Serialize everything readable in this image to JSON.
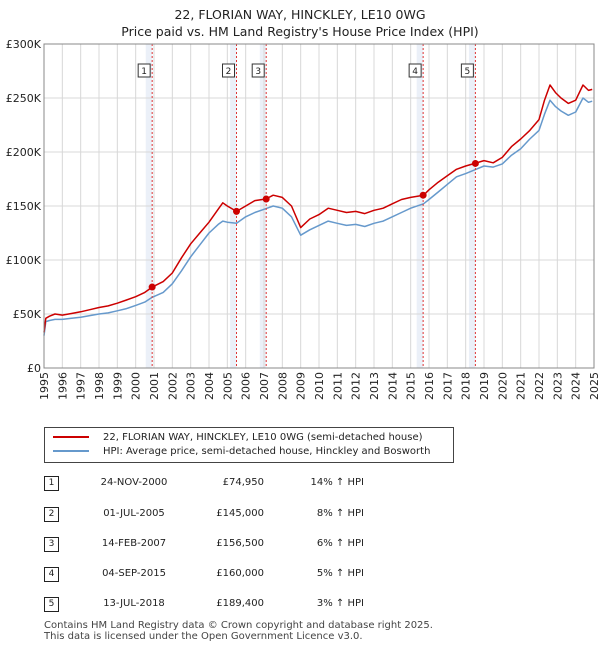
{
  "title_line1": "22, FLORIAN WAY, HINCKLEY, LE10 0WG",
  "title_line2": "Price paid vs. HM Land Registry's House Price Index (HPI)",
  "colors": {
    "price_line": "#cc0000",
    "hpi_line": "#6699cc",
    "shade": "#dde6f3",
    "marker_line": "#dd3333"
  },
  "chart_data": {
    "type": "line",
    "xlim": [
      1995,
      2025
    ],
    "ylim": [
      0,
      300000
    ],
    "y_ticks": [
      {
        "value": 0,
        "label": "£0"
      },
      {
        "value": 50000,
        "label": "£50K"
      },
      {
        "value": 100000,
        "label": "£100K"
      },
      {
        "value": 150000,
        "label": "£150K"
      },
      {
        "value": 200000,
        "label": "£200K"
      },
      {
        "value": 250000,
        "label": "£250K"
      },
      {
        "value": 300000,
        "label": "£300K"
      }
    ],
    "x_ticks": [
      "1995",
      "1996",
      "1997",
      "1998",
      "1999",
      "2000",
      "2001",
      "2002",
      "2003",
      "2004",
      "2005",
      "2006",
      "2007",
      "2008",
      "2009",
      "2010",
      "2011",
      "2012",
      "2013",
      "2014",
      "2015",
      "2016",
      "2017",
      "2018",
      "2019",
      "2020",
      "2021",
      "2022",
      "2023",
      "2024",
      "2025"
    ],
    "series": [
      {
        "name": "22, FLORIAN WAY, HINCKLEY, LE10 0WG (semi-detached house)",
        "points": [
          [
            1995.0,
            33000
          ],
          [
            1995.1,
            46000
          ],
          [
            1995.3,
            48000
          ],
          [
            1995.6,
            50000
          ],
          [
            1996.0,
            49000
          ],
          [
            1996.5,
            50500
          ],
          [
            1997.0,
            52000
          ],
          [
            1997.5,
            54000
          ],
          [
            1998.0,
            56000
          ],
          [
            1998.5,
            57500
          ],
          [
            1999.0,
            60000
          ],
          [
            1999.5,
            63000
          ],
          [
            2000.0,
            66000
          ],
          [
            2000.5,
            70000
          ],
          [
            2000.9,
            74950
          ],
          [
            2001.5,
            80000
          ],
          [
            2002.0,
            88000
          ],
          [
            2002.5,
            102000
          ],
          [
            2003.0,
            115000
          ],
          [
            2003.5,
            125000
          ],
          [
            2004.0,
            135000
          ],
          [
            2004.5,
            147000
          ],
          [
            2004.75,
            153000
          ],
          [
            2005.0,
            150000
          ],
          [
            2005.5,
            145000
          ],
          [
            2006.0,
            150000
          ],
          [
            2006.5,
            155000
          ],
          [
            2007.1,
            156500
          ],
          [
            2007.5,
            160000
          ],
          [
            2008.0,
            158000
          ],
          [
            2008.5,
            150000
          ],
          [
            2009.0,
            130000
          ],
          [
            2009.5,
            138000
          ],
          [
            2010.0,
            142000
          ],
          [
            2010.5,
            148000
          ],
          [
            2011.0,
            146000
          ],
          [
            2011.5,
            144000
          ],
          [
            2012.0,
            145000
          ],
          [
            2012.5,
            143000
          ],
          [
            2013.0,
            146000
          ],
          [
            2013.5,
            148000
          ],
          [
            2014.0,
            152000
          ],
          [
            2014.5,
            156000
          ],
          [
            2015.0,
            158000
          ],
          [
            2015.7,
            160000
          ],
          [
            2016.0,
            165000
          ],
          [
            2016.5,
            172000
          ],
          [
            2017.0,
            178000
          ],
          [
            2017.5,
            184000
          ],
          [
            2018.0,
            187000
          ],
          [
            2018.5,
            189400
          ],
          [
            2019.0,
            192000
          ],
          [
            2019.5,
            190000
          ],
          [
            2020.0,
            195000
          ],
          [
            2020.5,
            205000
          ],
          [
            2021.0,
            212000
          ],
          [
            2021.5,
            220000
          ],
          [
            2022.0,
            230000
          ],
          [
            2022.3,
            248000
          ],
          [
            2022.6,
            262000
          ],
          [
            2022.9,
            255000
          ],
          [
            2023.2,
            250000
          ],
          [
            2023.6,
            245000
          ],
          [
            2024.0,
            248000
          ],
          [
            2024.4,
            262000
          ],
          [
            2024.7,
            257000
          ],
          [
            2024.9,
            258000
          ]
        ]
      },
      {
        "name": "HPI: Average price, semi-detached house, Hinckley and Bosworth",
        "points": [
          [
            1995.0,
            30000
          ],
          [
            1995.1,
            43000
          ],
          [
            1995.3,
            44000
          ],
          [
            1995.6,
            45000
          ],
          [
            1996.0,
            45000
          ],
          [
            1996.5,
            46000
          ],
          [
            1997.0,
            47000
          ],
          [
            1997.5,
            48500
          ],
          [
            1998.0,
            50000
          ],
          [
            1998.5,
            51000
          ],
          [
            1999.0,
            53000
          ],
          [
            1999.5,
            55000
          ],
          [
            2000.0,
            58000
          ],
          [
            2000.5,
            61000
          ],
          [
            2000.9,
            65500
          ],
          [
            2001.5,
            70000
          ],
          [
            2002.0,
            78000
          ],
          [
            2002.5,
            90000
          ],
          [
            2003.0,
            103000
          ],
          [
            2003.5,
            114000
          ],
          [
            2004.0,
            125000
          ],
          [
            2004.5,
            133000
          ],
          [
            2004.75,
            136000
          ],
          [
            2005.0,
            135000
          ],
          [
            2005.5,
            134000
          ],
          [
            2006.0,
            140000
          ],
          [
            2006.5,
            144000
          ],
          [
            2007.1,
            147500
          ],
          [
            2007.5,
            150000
          ],
          [
            2008.0,
            148000
          ],
          [
            2008.5,
            140000
          ],
          [
            2009.0,
            123000
          ],
          [
            2009.5,
            128000
          ],
          [
            2010.0,
            132000
          ],
          [
            2010.5,
            136000
          ],
          [
            2011.0,
            134000
          ],
          [
            2011.5,
            132000
          ],
          [
            2012.0,
            133000
          ],
          [
            2012.5,
            131000
          ],
          [
            2013.0,
            134000
          ],
          [
            2013.5,
            136000
          ],
          [
            2014.0,
            140000
          ],
          [
            2014.5,
            144000
          ],
          [
            2015.0,
            148000
          ],
          [
            2015.7,
            152000
          ],
          [
            2016.0,
            156000
          ],
          [
            2016.5,
            163000
          ],
          [
            2017.0,
            170000
          ],
          [
            2017.5,
            177000
          ],
          [
            2018.0,
            180000
          ],
          [
            2018.5,
            183500
          ],
          [
            2019.0,
            187000
          ],
          [
            2019.5,
            186000
          ],
          [
            2020.0,
            189000
          ],
          [
            2020.5,
            197000
          ],
          [
            2021.0,
            203000
          ],
          [
            2021.5,
            212000
          ],
          [
            2022.0,
            220000
          ],
          [
            2022.3,
            235000
          ],
          [
            2022.6,
            248000
          ],
          [
            2022.9,
            242000
          ],
          [
            2023.2,
            238000
          ],
          [
            2023.6,
            234000
          ],
          [
            2024.0,
            237000
          ],
          [
            2024.4,
            250000
          ],
          [
            2024.7,
            246000
          ],
          [
            2024.9,
            247000
          ]
        ]
      }
    ],
    "sale_markers": [
      {
        "label": "1",
        "x": 2000.9,
        "price": 74950
      },
      {
        "label": "2",
        "x": 2005.5,
        "price": 145000
      },
      {
        "label": "3",
        "x": 2007.12,
        "price": 156500
      },
      {
        "label": "4",
        "x": 2015.68,
        "price": 160000
      },
      {
        "label": "5",
        "x": 2018.53,
        "price": 189400
      }
    ]
  },
  "legend": {
    "series1": "22, FLORIAN WAY, HINCKLEY, LE10 0WG (semi-detached house)",
    "series2": "HPI: Average price, semi-detached house, Hinckley and Bosworth"
  },
  "sales": [
    {
      "num": "1",
      "date": "24-NOV-2000",
      "price": "£74,950",
      "hpi": "14% ↑ HPI"
    },
    {
      "num": "2",
      "date": "01-JUL-2005",
      "price": "£145,000",
      "hpi": "8% ↑ HPI"
    },
    {
      "num": "3",
      "date": "14-FEB-2007",
      "price": "£156,500",
      "hpi": "6% ↑ HPI"
    },
    {
      "num": "4",
      "date": "04-SEP-2015",
      "price": "£160,000",
      "hpi": "5% ↑ HPI"
    },
    {
      "num": "5",
      "date": "13-JUL-2018",
      "price": "£189,400",
      "hpi": "3% ↑ HPI"
    }
  ],
  "footer": {
    "line1": "Contains HM Land Registry data © Crown copyright and database right 2025.",
    "line2": "This data is licensed under the Open Government Licence v3.0."
  }
}
